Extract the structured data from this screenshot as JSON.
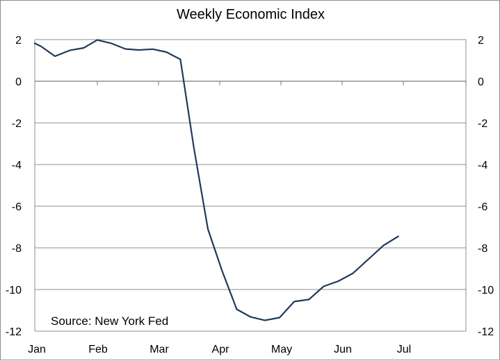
{
  "chart_data": {
    "type": "line",
    "title": "Weekly Economic Index",
    "xlabel": "",
    "ylabel": "",
    "x_categories": [
      "Jan",
      "Feb",
      "Mar",
      "Apr",
      "May",
      "Jun",
      "Jul"
    ],
    "ylim": [
      -12,
      2
    ],
    "yticks": [
      2,
      0,
      -2,
      -4,
      -6,
      -8,
      -10,
      -12
    ],
    "ytick_labels": [
      "2",
      "0",
      "-2",
      "-4",
      "-6",
      "-8",
      "-10",
      "-12"
    ],
    "grid": "horizontal",
    "secondary_axis_right": true,
    "series": [
      {
        "color": "#1f3a5a",
        "points": [
          {
            "x": 0.0,
            "y": 1.82
          },
          {
            "x": 0.1,
            "y": 1.68
          },
          {
            "x": 0.33,
            "y": 1.2
          },
          {
            "x": 0.57,
            "y": 1.48
          },
          {
            "x": 0.8,
            "y": 1.6
          },
          {
            "x": 1.02,
            "y": 1.98
          },
          {
            "x": 1.25,
            "y": 1.82
          },
          {
            "x": 1.48,
            "y": 1.55
          },
          {
            "x": 1.7,
            "y": 1.5
          },
          {
            "x": 1.93,
            "y": 1.54
          },
          {
            "x": 2.15,
            "y": 1.4
          },
          {
            "x": 2.38,
            "y": 1.05
          },
          {
            "x": 2.6,
            "y": -3.2
          },
          {
            "x": 2.83,
            "y": -7.1
          },
          {
            "x": 3.06,
            "y": -9.1
          },
          {
            "x": 3.3,
            "y": -10.95
          },
          {
            "x": 3.53,
            "y": -11.32
          },
          {
            "x": 3.76,
            "y": -11.48
          },
          {
            "x": 4.0,
            "y": -11.35
          },
          {
            "x": 4.24,
            "y": -10.58
          },
          {
            "x": 4.48,
            "y": -10.48
          },
          {
            "x": 4.72,
            "y": -9.85
          },
          {
            "x": 4.96,
            "y": -9.6
          },
          {
            "x": 5.2,
            "y": -9.22
          },
          {
            "x": 5.45,
            "y": -8.55
          },
          {
            "x": 5.7,
            "y": -7.88
          },
          {
            "x": 5.94,
            "y": -7.45
          }
        ]
      }
    ],
    "annotation": "Source: New York Fed"
  }
}
